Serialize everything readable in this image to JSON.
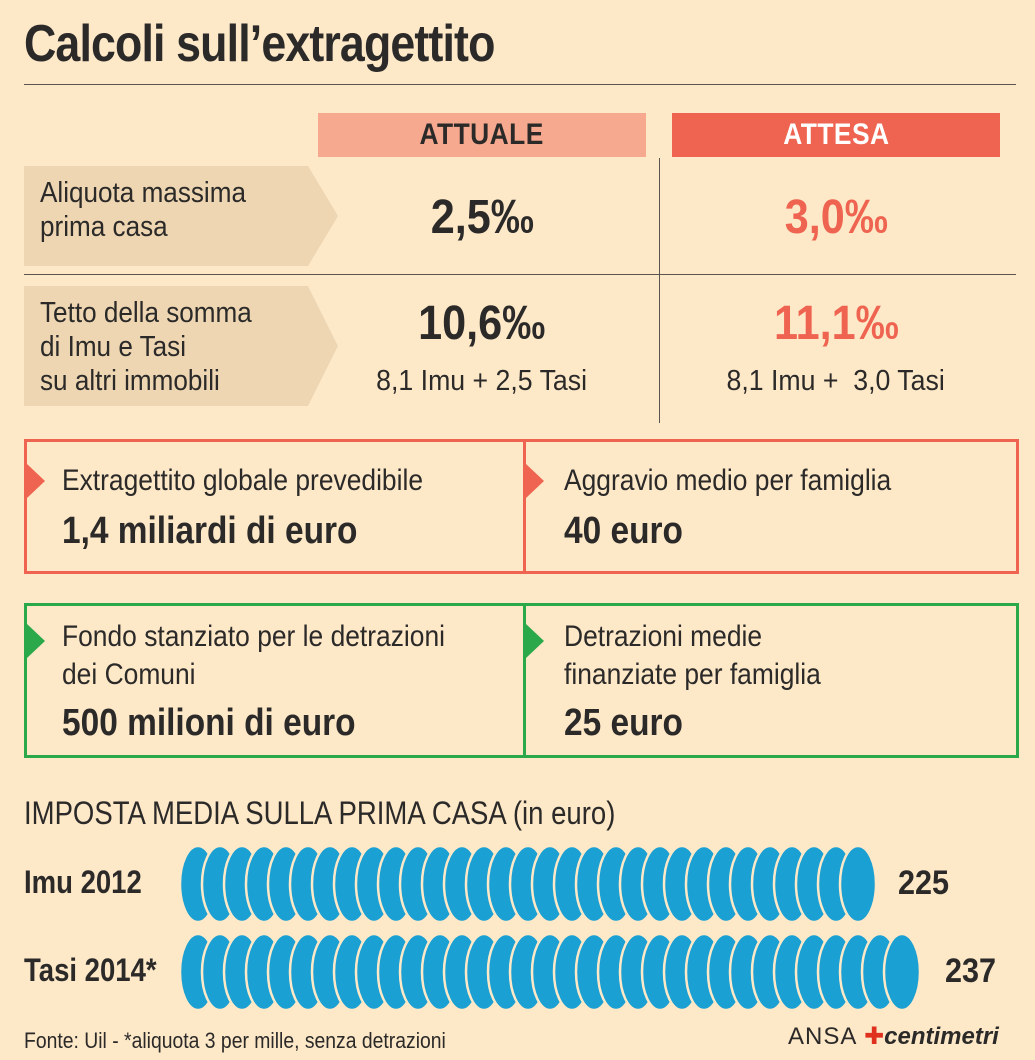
{
  "title": "Calcoli sull’extragettito",
  "columns": {
    "actual": "ATTUALE",
    "expected": "ATTESA"
  },
  "rows": [
    {
      "label": "Aliquota massima\nprima casa",
      "actual": "2,5‰",
      "expected": "3,0‰"
    },
    {
      "label": "Tetto della somma\ndi Imu e Tasi\nsu altri immobili",
      "actual": "10,6‰",
      "actual_detail": "8,1 Imu + 2,5 Tasi",
      "expected": "11,1‰",
      "expected_detail": "8,1 Imu +  3,0 Tasi"
    }
  ],
  "boxes_red": [
    {
      "desc": "Extragettito globale prevedibile",
      "value": "1,4 miliardi di euro"
    },
    {
      "desc": "Aggravio medio per famiglia",
      "value": "40 euro"
    }
  ],
  "boxes_green": [
    {
      "desc": "Fondo stanziato per le detrazioni\ndei Comuni",
      "value": "500 milioni di euro"
    },
    {
      "desc": "Detrazioni medie\nfinanziate per famiglia",
      "value": "25 euro"
    }
  ],
  "colors": {
    "background": "#fde8c8",
    "actual_header": "#f7a98f",
    "expected_accent": "#ef6450",
    "green_accent": "#2aa84a",
    "coin": "#1aa0d2"
  },
  "chart_data": {
    "type": "bar",
    "orientation": "horizontal",
    "title": "IMPOSTA MEDIA SULLA PRIMA CASA (in euro)",
    "categories": [
      "Imu 2012",
      "Tasi 2014*"
    ],
    "values": [
      225,
      237
    ],
    "value_labels": [
      "225",
      "237"
    ],
    "mark": "stacked coins"
  },
  "footer": {
    "source": "Fonte: Uil - *aliquota 3 per mille, senza detrazioni",
    "brand_ansa": "ANSA",
    "brand_sep": "✚",
    "brand_cm": "centimetri"
  }
}
